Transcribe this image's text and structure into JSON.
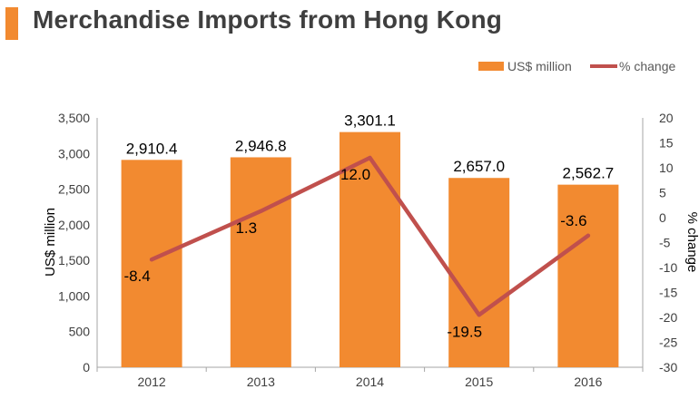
{
  "title": "Merchandise Imports from Hong Kong",
  "colors": {
    "accent": "#f28a30",
    "bar": "#f28a30",
    "line": "#c0504d",
    "axis": "#a6a6a6"
  },
  "chart_data": {
    "type": "bar",
    "categories": [
      "2012",
      "2013",
      "2014",
      "2015",
      "2016"
    ],
    "series": [
      {
        "name": "US$ million",
        "type": "bar",
        "axis": "left",
        "values": [
          2910.4,
          2946.8,
          3301.1,
          2657.0,
          2562.7
        ],
        "labels": [
          "2,910.4",
          "2,946.8",
          "3,301.1",
          "2,657.0",
          "2,562.7"
        ]
      },
      {
        "name": "% change",
        "type": "line",
        "axis": "right",
        "values": [
          -8.4,
          1.3,
          12.0,
          -19.5,
          -3.6
        ],
        "labels": [
          "-8.4",
          "1.3",
          "12.0",
          "-19.5",
          "-3.6"
        ]
      }
    ],
    "y_left": {
      "label": "US$ million",
      "min": 0,
      "max": 3500,
      "ticks": [
        "0",
        "500",
        "1,000",
        "1,500",
        "2,000",
        "2,500",
        "3,000",
        "3,500"
      ]
    },
    "y_right": {
      "label": "% change",
      "min": -30,
      "max": 20,
      "ticks": [
        "-30",
        "-25",
        "-20",
        "-15",
        "-10",
        "-5",
        "0",
        "5",
        "10",
        "15",
        "20"
      ]
    },
    "legend_position": "top-right",
    "grid": false
  }
}
